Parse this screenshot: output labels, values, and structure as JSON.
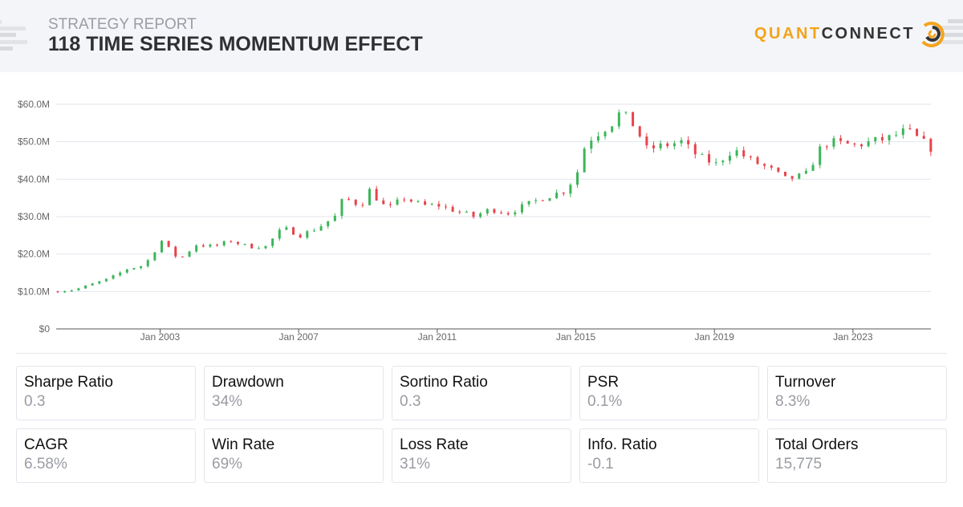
{
  "header": {
    "subtitle": "STRATEGY REPORT",
    "title": "118 TIME SERIES MOMENTUM EFFECT"
  },
  "logo": {
    "text_a": "QUANT",
    "text_b": "CONNECT",
    "colors": {
      "orange": "#f5a31a",
      "dark": "#333333"
    }
  },
  "stats": [
    {
      "label": "Sharpe Ratio",
      "value": "0.3"
    },
    {
      "label": "Drawdown",
      "value": "34%"
    },
    {
      "label": "Sortino Ratio",
      "value": "0.3"
    },
    {
      "label": "PSR",
      "value": "0.1%"
    },
    {
      "label": "Turnover",
      "value": "8.3%"
    },
    {
      "label": "CAGR",
      "value": "6.58%"
    },
    {
      "label": "Win Rate",
      "value": "69%"
    },
    {
      "label": "Loss Rate",
      "value": "31%"
    },
    {
      "label": "Info. Ratio",
      "value": "-0.1"
    },
    {
      "label": "Total Orders",
      "value": "15,775"
    }
  ],
  "chart_data": {
    "type": "candlestick",
    "ylabel": "",
    "xlabel": "",
    "ylim": [
      0,
      60
    ],
    "xlim": [
      "2000-01",
      "2025-04"
    ],
    "y_ticks": [
      "$0",
      "$10.0M",
      "$20.0M",
      "$30.0M",
      "$40.0M",
      "$50.0M",
      "$60.0M"
    ],
    "x_ticks": [
      "Jan 2003",
      "Jan 2007",
      "Jan 2011",
      "Jan 2015",
      "Jan 2019",
      "Jan 2023"
    ],
    "grid": true,
    "colors": {
      "up": "#3cb55a",
      "down": "#e8434d"
    },
    "equity_musd": [
      [
        "2000-01",
        10
      ],
      [
        "2000-07",
        10.5
      ],
      [
        "2001-01",
        12
      ],
      [
        "2001-07",
        13.5
      ],
      [
        "2002-01",
        16
      ],
      [
        "2002-07",
        17
      ],
      [
        "2003-01",
        23.5
      ],
      [
        "2003-07",
        18.5
      ],
      [
        "2004-01",
        22.5
      ],
      [
        "2004-07",
        22
      ],
      [
        "2005-01",
        23.5
      ],
      [
        "2005-07",
        22
      ],
      [
        "2006-01",
        22
      ],
      [
        "2006-07",
        27
      ],
      [
        "2007-01",
        25
      ],
      [
        "2007-07",
        27
      ],
      [
        "2008-01",
        30
      ],
      [
        "2008-04",
        35
      ],
      [
        "2008-10",
        33
      ],
      [
        "2009-01",
        37
      ],
      [
        "2009-07",
        32
      ],
      [
        "2010-01",
        35
      ],
      [
        "2010-07",
        33
      ],
      [
        "2011-01",
        33
      ],
      [
        "2012-01",
        30
      ],
      [
        "2012-07",
        32
      ],
      [
        "2013-01",
        31
      ],
      [
        "2014-01",
        35
      ],
      [
        "2014-09",
        37
      ],
      [
        "2015-01",
        42
      ],
      [
        "2015-04",
        50
      ],
      [
        "2016-01",
        55
      ],
      [
        "2016-04",
        58
      ],
      [
        "2016-09",
        54
      ],
      [
        "2017-01",
        48
      ],
      [
        "2018-01",
        50
      ],
      [
        "2018-07",
        46
      ],
      [
        "2019-01",
        44
      ],
      [
        "2019-07",
        48
      ],
      [
        "2020-01",
        45
      ],
      [
        "2020-07",
        43
      ],
      [
        "2021-01",
        40
      ],
      [
        "2021-08",
        41
      ],
      [
        "2022-01",
        48
      ],
      [
        "2022-04",
        50
      ],
      [
        "2023-01",
        49
      ],
      [
        "2024-01",
        51
      ],
      [
        "2024-07",
        53
      ],
      [
        "2025-04",
        48
      ]
    ]
  }
}
